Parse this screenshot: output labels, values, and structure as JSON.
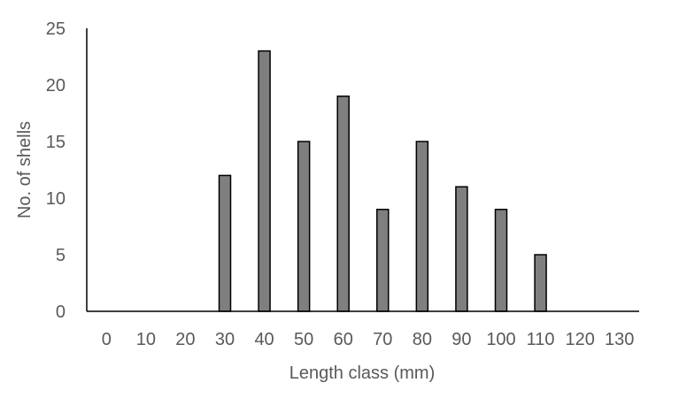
{
  "chart_data": {
    "type": "bar",
    "categories": [
      "0",
      "10",
      "20",
      "30",
      "40",
      "50",
      "60",
      "70",
      "80",
      "90",
      "100",
      "110",
      "120",
      "130"
    ],
    "values": [
      0,
      0,
      0,
      12,
      23,
      15,
      19,
      9,
      15,
      11,
      9,
      5,
      0,
      0
    ],
    "title": "",
    "xlabel": "Length class (mm)",
    "ylabel": "No. of shells",
    "ylim": [
      0,
      25
    ],
    "yticks": [
      "0",
      "5",
      "10",
      "15",
      "20",
      "25"
    ],
    "grid": false,
    "legend": "none",
    "colors": {
      "bar_fill": "#7f7f7f",
      "bar_stroke": "#000000",
      "axis": "#000000",
      "text": "#595959"
    }
  }
}
